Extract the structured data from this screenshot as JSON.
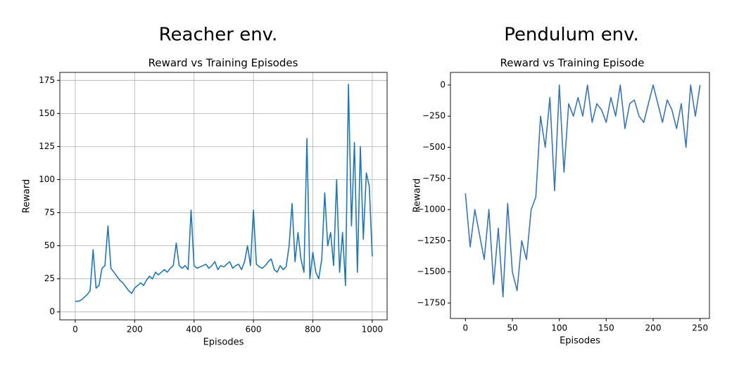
{
  "chart_data": [
    {
      "type": "line",
      "title": "Reacher env.",
      "subtitle": "Reward vs Training Episodes",
      "xlabel": "Episodes",
      "ylabel": "Reward",
      "grid": true,
      "x": [
        0,
        10,
        20,
        30,
        40,
        50,
        60,
        70,
        80,
        90,
        100,
        110,
        120,
        130,
        140,
        150,
        160,
        170,
        180,
        190,
        200,
        210,
        220,
        230,
        240,
        250,
        260,
        270,
        280,
        290,
        300,
        310,
        320,
        330,
        340,
        350,
        360,
        370,
        380,
        390,
        400,
        410,
        420,
        430,
        440,
        450,
        460,
        470,
        480,
        490,
        500,
        510,
        520,
        530,
        540,
        550,
        560,
        570,
        580,
        590,
        600,
        610,
        620,
        630,
        640,
        650,
        660,
        670,
        680,
        690,
        700,
        710,
        720,
        730,
        740,
        750,
        760,
        770,
        780,
        790,
        800,
        810,
        820,
        830,
        840,
        850,
        860,
        870,
        880,
        890,
        900,
        910,
        920,
        930,
        940,
        950,
        960,
        970,
        980,
        990,
        1000
      ],
      "series": [
        {
          "name": "Reward",
          "color": "#1f77b4",
          "values": [
            8,
            8,
            9,
            11,
            13,
            16,
            47,
            18,
            20,
            33,
            35,
            65,
            33,
            30,
            27,
            24,
            22,
            19,
            16,
            14,
            18,
            20,
            22,
            20,
            24,
            27,
            25,
            30,
            28,
            30,
            32,
            30,
            33,
            35,
            52,
            35,
            33,
            35,
            32,
            77,
            35,
            33,
            34,
            35,
            36,
            33,
            35,
            38,
            32,
            35,
            34,
            36,
            38,
            33,
            35,
            36,
            32,
            38,
            50,
            35,
            77,
            36,
            34,
            33,
            35,
            38,
            40,
            32,
            30,
            35,
            32,
            34,
            50,
            82,
            38,
            60,
            40,
            30,
            131,
            25,
            45,
            30,
            25,
            40,
            90,
            50,
            60,
            35,
            100,
            30,
            60,
            20,
            172,
            65,
            128,
            30,
            125,
            55,
            105,
            95,
            42
          ]
        }
      ],
      "xlim": [
        -52,
        1050
      ],
      "ylim": [
        -6,
        181
      ],
      "xticks": [
        0,
        200,
        400,
        600,
        800,
        1000
      ],
      "yticks": [
        0,
        25,
        50,
        75,
        100,
        125,
        150,
        175
      ]
    },
    {
      "type": "line",
      "title": "Pendulum env.",
      "subtitle": "Reward vs Training Episode",
      "xlabel": "Episodes",
      "ylabel": "Reward",
      "grid": false,
      "x": [
        0,
        5,
        10,
        15,
        20,
        25,
        30,
        35,
        40,
        45,
        50,
        55,
        60,
        65,
        70,
        75,
        80,
        85,
        90,
        95,
        100,
        105,
        110,
        115,
        120,
        125,
        130,
        135,
        140,
        145,
        150,
        155,
        160,
        165,
        170,
        175,
        180,
        185,
        190,
        195,
        200,
        205,
        210,
        215,
        220,
        225,
        230,
        235,
        240,
        245,
        250
      ],
      "series": [
        {
          "name": "Reward",
          "color": "#3a75b6",
          "values": [
            -870,
            -1300,
            -1000,
            -1200,
            -1400,
            -1000,
            -1600,
            -1150,
            -1700,
            -950,
            -1500,
            -1650,
            -1250,
            -1400,
            -1000,
            -900,
            -250,
            -500,
            -100,
            -850,
            0,
            -700,
            -150,
            -250,
            -100,
            -250,
            0,
            -300,
            -150,
            -200,
            -300,
            -100,
            -250,
            0,
            -350,
            -150,
            -120,
            -250,
            -300,
            -150,
            0,
            -150,
            -300,
            -120,
            -200,
            -350,
            -150,
            -500,
            0,
            -250,
            0
          ]
        }
      ],
      "xlim": [
        -16,
        260
      ],
      "ylim": [
        -1874,
        101
      ],
      "xticks": [
        0,
        50,
        100,
        150,
        200,
        250
      ],
      "yticks": [
        0,
        {
          "value": -250,
          "label": "−250"
        },
        {
          "value": -500,
          "label": "−500"
        },
        {
          "value": -750,
          "label": "−750"
        },
        {
          "value": -1000,
          "label": "−1000"
        },
        {
          "value": -1250,
          "label": "−1250"
        },
        {
          "value": -1500,
          "label": "−1500"
        },
        {
          "value": -1750,
          "label": "−1750"
        }
      ]
    }
  ]
}
